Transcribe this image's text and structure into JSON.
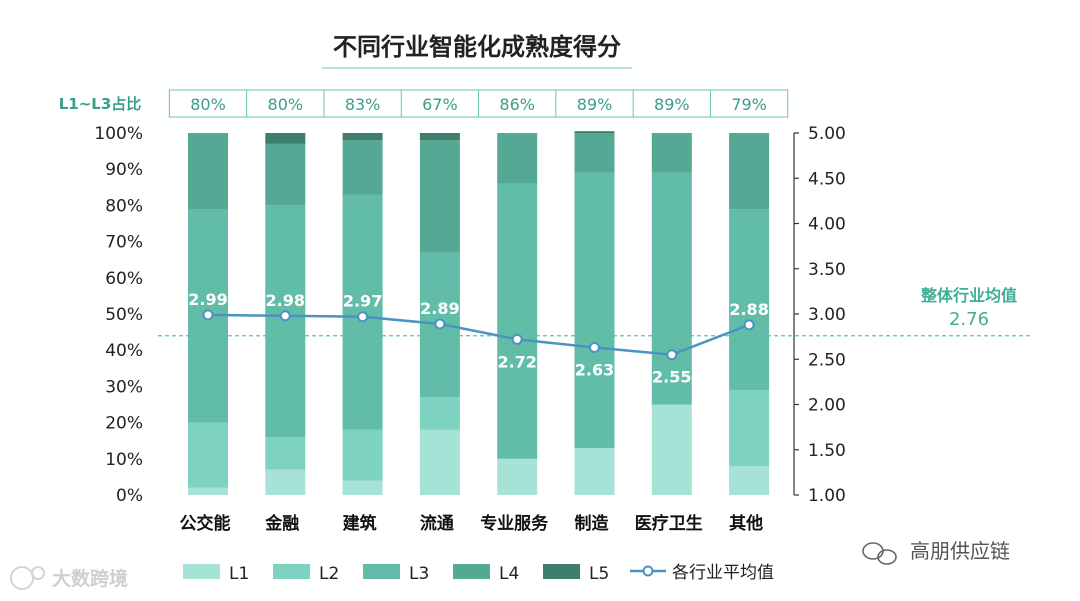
{
  "chart_data": {
    "type": "bar",
    "title": "不同行业智能化成熟度得分",
    "categories": [
      "公交能",
      "金融",
      "建筑",
      "流通",
      "专业服务",
      "制造",
      "医疗卫生",
      "其他"
    ],
    "left_axis": {
      "range": [
        0,
        100
      ],
      "ticks": [
        "0%",
        "10%",
        "20%",
        "30%",
        "40%",
        "50%",
        "60%",
        "70%",
        "80%",
        "90%",
        "100%"
      ]
    },
    "right_axis": {
      "range": [
        1.0,
        5.0
      ],
      "ticks": [
        "1.00",
        "1.50",
        "2.00",
        "2.50",
        "3.00",
        "3.50",
        "4.00",
        "4.50",
        "5.00"
      ]
    },
    "series": [
      {
        "name": "L1",
        "color": "#a6e2d6",
        "values": [
          2,
          7,
          4,
          18,
          10,
          13,
          25,
          8
        ]
      },
      {
        "name": "L2",
        "color": "#7dd3c0",
        "values": [
          18,
          9,
          14,
          9,
          0,
          0,
          0,
          21
        ]
      },
      {
        "name": "L3",
        "color": "#62bda8",
        "values": [
          59,
          64,
          65,
          40,
          76,
          76,
          64,
          50
        ]
      },
      {
        "name": "L4",
        "color": "#55a893",
        "values": [
          21,
          17,
          15,
          31,
          14,
          11,
          11,
          21
        ]
      },
      {
        "name": "L5",
        "color": "#3f7d6c",
        "values": [
          0,
          3,
          2,
          2,
          0,
          0.5,
          0,
          0
        ]
      }
    ],
    "line_series": {
      "name": "各行业平均值",
      "color": "#4b93c1",
      "values": [
        2.99,
        2.98,
        2.97,
        2.89,
        2.72,
        2.63,
        2.55,
        2.88
      ],
      "labels": [
        "2.99",
        "2.98",
        "2.97",
        "2.89",
        "2.72",
        "2.63",
        "2.55",
        "2.88"
      ]
    },
    "overall_average": {
      "label": "整体行业均值",
      "value": 2.76,
      "value_text": "2.76"
    },
    "l1_l3_share": {
      "label": "L1~L3占比",
      "values": [
        "80%",
        "80%",
        "83%",
        "67%",
        "86%",
        "89%",
        "89%",
        "79%"
      ]
    },
    "legend": [
      "L1",
      "L2",
      "L3",
      "L4",
      "L5",
      "各行业平均值"
    ]
  },
  "watermarks": {
    "right": "高朋供应链",
    "left": "大数跨境"
  }
}
